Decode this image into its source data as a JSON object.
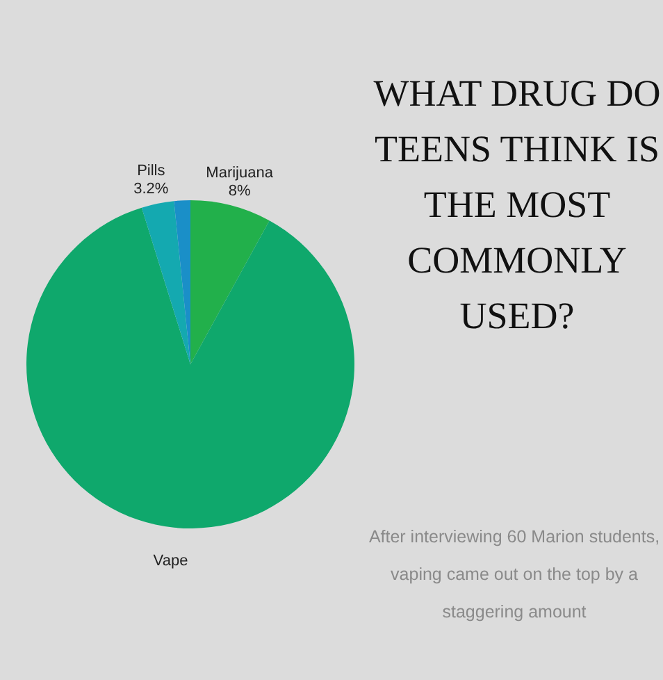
{
  "chart_data": {
    "type": "pie",
    "title": "WHAT DRUG DO\nTEENS THINK IS\nTHE MOST\nCOMMONLY\nUSED?",
    "categories": [
      "Marijuana",
      "Vape",
      "Pills",
      null
    ],
    "values": [
      8,
      87.2,
      3.2,
      1.6
    ],
    "value_labels": [
      "8%",
      null,
      "3.2%",
      null
    ],
    "colors": [
      "#22b04b",
      "#0fa86c",
      "#14a9b0",
      "#1a8fc8"
    ],
    "annotations": [
      "After interviewing 60 Marion students,\nvaping came out on the top by a\nstaggering amount"
    ]
  }
}
